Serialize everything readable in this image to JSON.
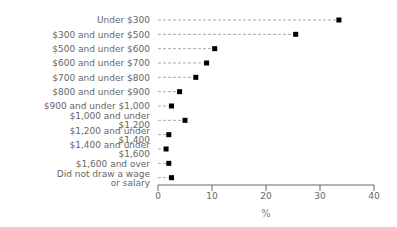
{
  "chart_data": {
    "type": "lollipop",
    "orientation": "horizontal",
    "categories": [
      "Under $300",
      "$300 and under $500",
      "$500 and under $600",
      "$600 and under $700",
      "$700 and under $800",
      "$800 and under $900",
      "$900 and under $1,000",
      "$1,000 and under $1,200",
      "$1,200 and under $1,400",
      "$1,400 and under $1,600",
      "$1,600 and over",
      "Did not draw a wage or salary"
    ],
    "values": [
      33.5,
      25.5,
      10.5,
      9.0,
      7.0,
      4.0,
      2.5,
      5.0,
      2.0,
      1.5,
      2.0,
      2.5
    ],
    "xlabel": "%",
    "xlim": [
      0,
      40
    ],
    "xticks": [
      0,
      10,
      20,
      30,
      40
    ],
    "marker": "square",
    "line_style": "dashed",
    "color": "#000000",
    "grid": false
  }
}
